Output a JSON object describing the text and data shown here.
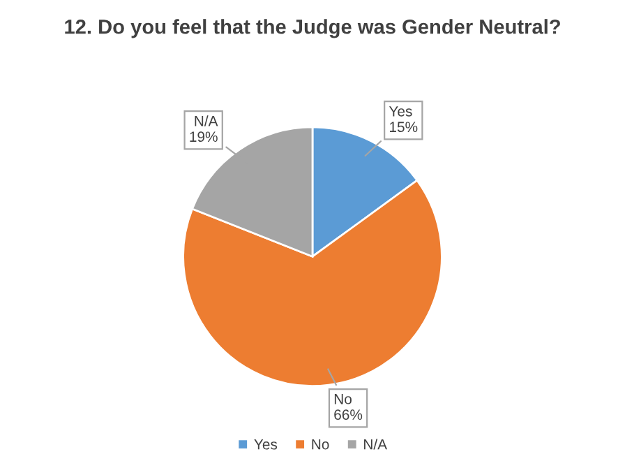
{
  "chart_data": {
    "type": "pie",
    "title": "12. Do you feel that the Judge was Gender Neutral?",
    "categories": [
      "Yes",
      "No",
      "N/A"
    ],
    "values": [
      15,
      66,
      19
    ],
    "value_labels": [
      "15%",
      "66%",
      "19%"
    ],
    "colors": [
      "#5b9bd5",
      "#ed7d31",
      "#a5a5a5"
    ],
    "legend": "bottom"
  }
}
